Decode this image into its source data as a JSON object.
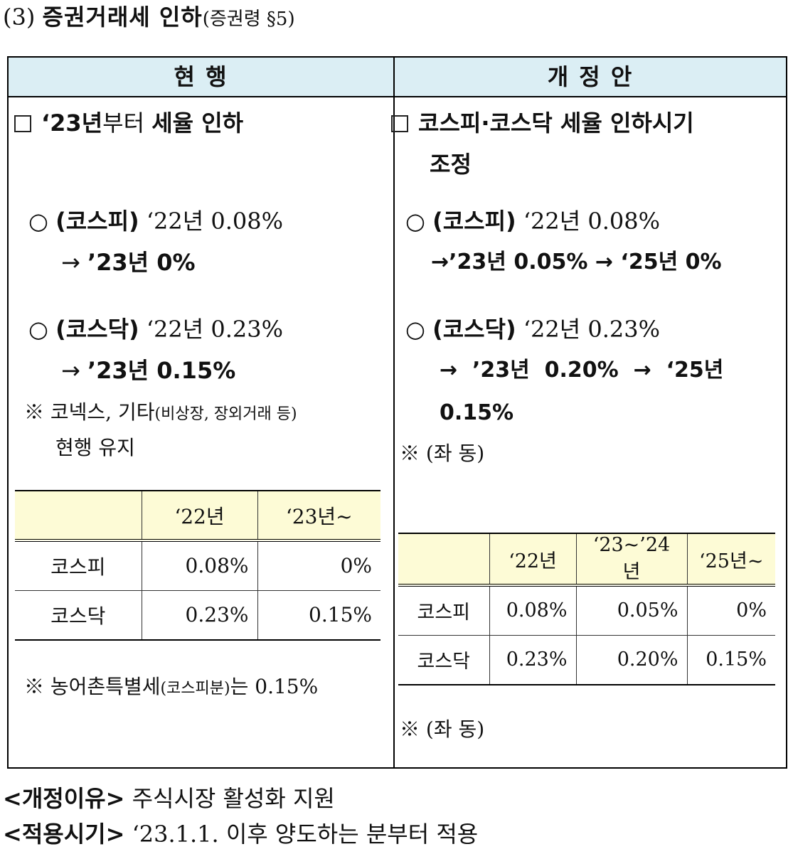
{
  "title": {
    "number": "(3)",
    "main": "증권거래세 인하",
    "ref": "(증권령 §5)"
  },
  "headers": {
    "current": "현  행",
    "proposed": "개 정 안"
  },
  "current": {
    "box": [
      "‘23년",
      "부터",
      "세율 인하"
    ],
    "kospi": {
      "label": "(코스피)",
      "from": "‘22년 0.08%",
      "arrow": "→",
      "to": "’23년  0%"
    },
    "kosdaq": {
      "label": "(코스닥)",
      "from": "‘22년 0.23%",
      "arrow": "→",
      "to": "’23년 0.15%"
    },
    "note1_line1_a": "※ 코넥스, 기타",
    "note1_line1_b": "(비상장, 장외거래 등)",
    "note1_line2": "현행 유지",
    "table": {
      "headers": [
        "",
        "‘22년",
        "‘23년~"
      ],
      "rows": [
        [
          "코스피",
          "0.08%",
          "0%"
        ],
        [
          "코스닥",
          "0.23%",
          "0.15%"
        ]
      ]
    },
    "note2_a": "※ 농어촌특별세",
    "note2_b": "(코스피분)",
    "note2_c": "는 0.15%"
  },
  "proposed": {
    "box_line1": "코스피·코스닥 세율 인하시기",
    "box_line2": "조정",
    "kospi": {
      "label": "(코스피)",
      "from": "‘22년 0.08%",
      "line2": "→’23년 0.05% → ‘25년 0%"
    },
    "kosdaq": {
      "label": "(코스닥)",
      "from": "‘22년 0.23%",
      "line2": "→  ’23년  0.20%  →  ‘25년",
      "line3": "0.15%"
    },
    "note1": "※ (좌 동)",
    "table": {
      "headers": [
        "",
        "‘22년",
        "‘23~’24년",
        "‘25년~"
      ],
      "rows": [
        [
          "코스피",
          "0.08%",
          "0.05%",
          "0%"
        ],
        [
          "코스닥",
          "0.23%",
          "0.20%",
          "0.15%"
        ]
      ]
    },
    "note2": "※ (좌 동)"
  },
  "footer": {
    "reason_label": "<개정이유>",
    "reason_text": "주식시장 활성화 지원",
    "date_label": "<적용시기>",
    "date_text": "‘23.1.1. 이후 양도하는 분부터 적용"
  }
}
